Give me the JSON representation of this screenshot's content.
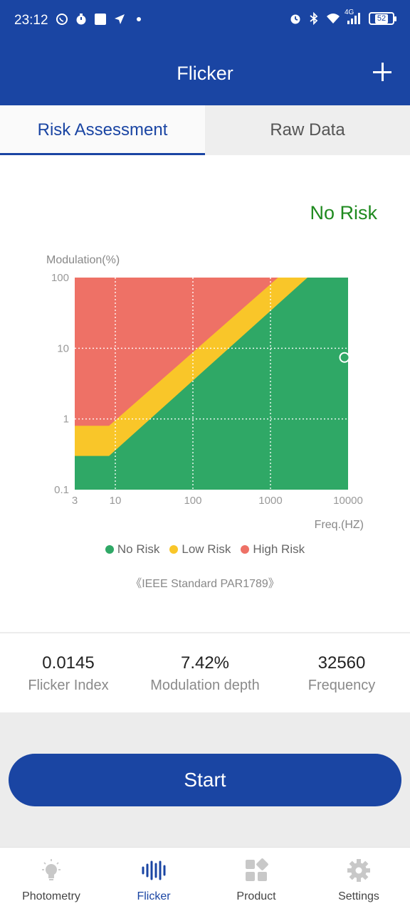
{
  "status_bar": {
    "time": "23:12",
    "network": "4G",
    "battery": "52",
    "left_icons": [
      "whatsapp-icon",
      "stopwatch-icon",
      "square-app-icon",
      "navigation-arrow-icon",
      "dot-icon"
    ],
    "right_icons": [
      "alarm-icon",
      "bluetooth-icon",
      "wifi-icon",
      "cell-signal-icon",
      "battery-icon"
    ]
  },
  "appbar": {
    "title": "Flicker",
    "add_icon": "plus-icon"
  },
  "tabs": [
    {
      "label": "Risk Assessment",
      "active": true
    },
    {
      "label": "Raw Data",
      "active": false
    }
  ],
  "risk_result": "No Risk",
  "chart_data": {
    "type": "area",
    "ylabel": "Modulation(%)",
    "xlabel": "Freq.(HZ)",
    "x_scale": "log",
    "y_scale": "log",
    "x_ticks": [
      "3",
      "10",
      "100",
      "1000",
      "10000"
    ],
    "y_ticks": [
      "0.1",
      "1",
      "10",
      "100"
    ],
    "xlim": [
      3,
      10000
    ],
    "ylim": [
      0.1,
      100
    ],
    "grid": true,
    "regions": [
      {
        "name": "No Risk",
        "color": "#2fa866",
        "boundary": [
          [
            3,
            0.3
          ],
          [
            8.3,
            0.3
          ],
          [
            3000,
            100
          ]
        ]
      },
      {
        "name": "Low Risk",
        "color": "#f9c629",
        "boundary": [
          [
            3,
            0.8
          ],
          [
            8.3,
            0.8
          ],
          [
            1250,
            100
          ]
        ]
      },
      {
        "name": "High Risk",
        "color": "#ee7166"
      }
    ],
    "measurement_point": {
      "x": 10000,
      "y": 7.42
    },
    "legend_position": "bottom"
  },
  "legend": [
    {
      "label": "No Risk",
      "color": "#2fa866"
    },
    {
      "label": "Low Risk",
      "color": "#f9c629"
    },
    {
      "label": "High Risk",
      "color": "#ee7166"
    }
  ],
  "standard": "《IEEE Standard PAR1789》",
  "metrics": [
    {
      "value": "0.0145",
      "label": "Flicker Index"
    },
    {
      "value": "7.42%",
      "label": "Modulation depth"
    },
    {
      "value": "32560",
      "label": "Frequency"
    }
  ],
  "start_button": "Start",
  "bottom_nav": [
    {
      "label": "Photometry",
      "icon": "lightbulb-icon",
      "active": false
    },
    {
      "label": "Flicker",
      "icon": "waveform-icon",
      "active": true
    },
    {
      "label": "Product",
      "icon": "grid-icon",
      "active": false
    },
    {
      "label": "Settings",
      "icon": "gear-icon",
      "active": false
    }
  ]
}
